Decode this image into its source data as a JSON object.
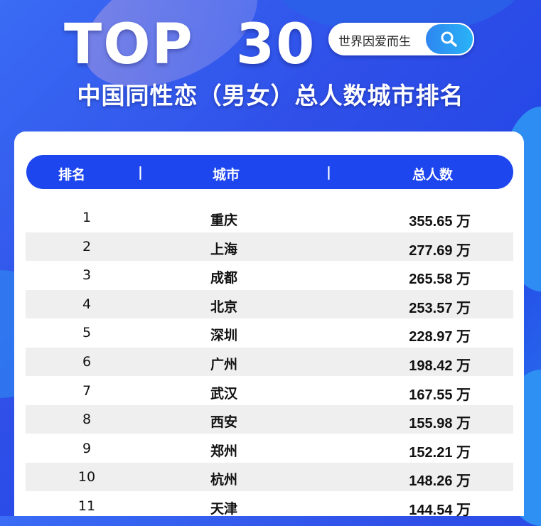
{
  "header": {
    "title": "TOP 30",
    "subtitle": "中国同性恋（男女）总人数城市排名"
  },
  "search": {
    "text": "世界因爱而生",
    "icon": "search-icon"
  },
  "table": {
    "columns": [
      "排名",
      "城市",
      "总人数"
    ],
    "separator": "|",
    "rows": [
      {
        "rank": "1",
        "city": "重庆",
        "total": "355.65 万"
      },
      {
        "rank": "2",
        "city": "上海",
        "total": "277.69 万"
      },
      {
        "rank": "3",
        "city": "成都",
        "total": "265.58 万"
      },
      {
        "rank": "4",
        "city": "北京",
        "total": "253.57 万"
      },
      {
        "rank": "5",
        "city": "深圳",
        "total": "228.97 万"
      },
      {
        "rank": "6",
        "city": "广州",
        "total": "198.42 万"
      },
      {
        "rank": "7",
        "city": "武汉",
        "total": "167.55 万"
      },
      {
        "rank": "8",
        "city": "西安",
        "total": "155.98 万"
      },
      {
        "rank": "9",
        "city": "郑州",
        "total": "152.21 万"
      },
      {
        "rank": "10",
        "city": "杭州",
        "total": "148.26 万"
      },
      {
        "rank": "11",
        "city": "天津",
        "total": "144.54 万"
      }
    ]
  },
  "colors": {
    "accent": "#1e46ee",
    "stripe": "#efefef"
  }
}
